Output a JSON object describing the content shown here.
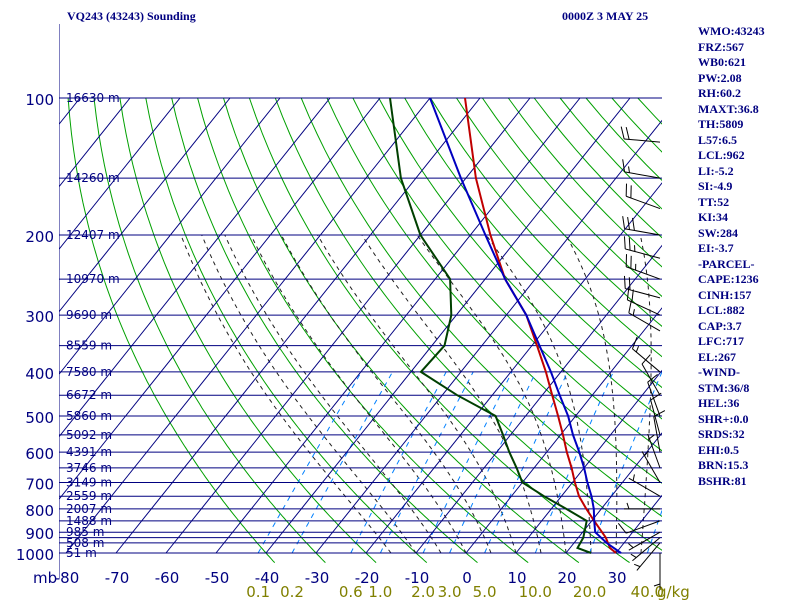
{
  "header": {
    "title": "VQ243 (43243) Sounding",
    "valid_time": "0000Z  3 MAY 25"
  },
  "indices": [
    "WMO:43243",
    "FRZ:567",
    "WB0:621",
    "PW:2.08",
    "RH:60.2",
    "MAXT:36.8",
    "TH:5809",
    "L57:6.5",
    "LCL:962",
    "LI:-5.2",
    "SI:-4.9",
    "TT:52",
    "KI:34",
    "SW:284",
    "EI:-3.7",
    "-PARCEL-",
    "CAPE:1236",
    "CINH:157",
    "LCL:882",
    "CAP:3.7",
    "LFC:717",
    "EL:267",
    "-WIND-",
    "STM:36/8",
    "HEL:36",
    "SHR+:0.0",
    "SRDS:32",
    "EHI:0.5",
    "BRN:15.3",
    "BSHR:81"
  ],
  "chart_data": {
    "type": "skew-t log-p sounding",
    "y_axis": {
      "label": "mb",
      "scale": "log",
      "range_hPa": [
        1000,
        100
      ],
      "ticks": [
        100,
        200,
        300,
        400,
        500,
        600,
        700,
        800,
        900,
        1000
      ]
    },
    "x_axis": {
      "unit": "°C",
      "range_C": [
        -80,
        40
      ],
      "ticks": [
        -80,
        -70,
        -60,
        -50,
        -40,
        -30,
        -20,
        -10,
        0,
        10,
        20,
        30
      ],
      "skewed": true
    },
    "mixing_ratio_axis": {
      "unit": "g/kg",
      "ticks": [
        {
          "text": "0.1",
          "w": 0.1
        },
        {
          "text": "0.2",
          "w": 0.2
        },
        {
          "text": "0.6",
          "w": 0.6
        },
        {
          "text": "1.0",
          "w": 1.0
        },
        {
          "text": "2.0",
          "w": 2.0
        },
        {
          "text": "3.0",
          "w": 3.0
        },
        {
          "text": "5.0",
          "w": 5.0
        },
        {
          "text": "10.0",
          "w": 10.0
        },
        {
          "text": "20.0",
          "w": 20.0
        },
        {
          "text": "40.0",
          "w": 40.0
        }
      ]
    },
    "mixing_ratio_unit_label": "g/kg",
    "height_labels": [
      {
        "p": 100,
        "text": "16630 m"
      },
      {
        "p": 150,
        "text": "14260 m"
      },
      {
        "p": 200,
        "text": "12407 m"
      },
      {
        "p": 250,
        "text": "10970 m"
      },
      {
        "p": 300,
        "text": "9690 m"
      },
      {
        "p": 350,
        "text": "8559 m"
      },
      {
        "p": 400,
        "text": "7580 m"
      },
      {
        "p": 450,
        "text": "6672 m"
      },
      {
        "p": 500,
        "text": "5860 m"
      },
      {
        "p": 550,
        "text": "5092 m"
      },
      {
        "p": 600,
        "text": "4391 m"
      },
      {
        "p": 650,
        "text": "3746 m"
      },
      {
        "p": 700,
        "text": "3149 m"
      },
      {
        "p": 750,
        "text": "2559 m"
      },
      {
        "p": 800,
        "text": "2007 m"
      },
      {
        "p": 850,
        "text": "1488 m"
      },
      {
        "p": 900,
        "text": "985 m"
      },
      {
        "p": 950,
        "text": "508 m"
      },
      {
        "p": 1000,
        "text": "51 m"
      }
    ],
    "isobars_hPa": [
      100,
      150,
      200,
      250,
      300,
      350,
      400,
      450,
      500,
      550,
      600,
      650,
      700,
      750,
      800,
      850,
      900,
      925,
      950,
      1000
    ],
    "series": [
      {
        "kind": "temperature",
        "color": "#c00000",
        "points": [
          {
            "p": 1000,
            "t": 30.0
          },
          {
            "p": 975,
            "t": 28.0
          },
          {
            "p": 925,
            "t": 25.5
          },
          {
            "p": 850,
            "t": 20.5
          },
          {
            "p": 800,
            "t": 17.0
          },
          {
            "p": 750,
            "t": 13.5
          },
          {
            "p": 700,
            "t": 10.5
          },
          {
            "p": 650,
            "t": 7.5
          },
          {
            "p": 600,
            "t": 4.0
          },
          {
            "p": 550,
            "t": 0.5
          },
          {
            "p": 500,
            "t": -3.5
          },
          {
            "p": 450,
            "t": -8.0
          },
          {
            "p": 400,
            "t": -13.0
          },
          {
            "p": 350,
            "t": -19.0
          },
          {
            "p": 300,
            "t": -26.0
          },
          {
            "p": 250,
            "t": -36.0
          },
          {
            "p": 200,
            "t": -46.0
          },
          {
            "p": 150,
            "t": -58.0
          },
          {
            "p": 100,
            "t": -73.0
          }
        ]
      },
      {
        "kind": "dewpoint",
        "color": "#004000",
        "points": [
          {
            "p": 1000,
            "t": 25.0
          },
          {
            "p": 975,
            "t": 21.5
          },
          {
            "p": 925,
            "t": 21.0
          },
          {
            "p": 850,
            "t": 19.0
          },
          {
            "p": 800,
            "t": 13.0
          },
          {
            "p": 750,
            "t": 6.5
          },
          {
            "p": 700,
            "t": 0.0
          },
          {
            "p": 650,
            "t": -3.5
          },
          {
            "p": 600,
            "t": -7.5
          },
          {
            "p": 550,
            "t": -11.5
          },
          {
            "p": 500,
            "t": -16.0
          },
          {
            "p": 450,
            "t": -27.0
          },
          {
            "p": 400,
            "t": -38.0
          },
          {
            "p": 350,
            "t": -37.5
          },
          {
            "p": 300,
            "t": -41.0
          },
          {
            "p": 250,
            "t": -47.0
          },
          {
            "p": 200,
            "t": -60.0
          },
          {
            "p": 150,
            "t": -73.0
          },
          {
            "p": 100,
            "t": -88.0
          }
        ]
      },
      {
        "kind": "parcel",
        "color": "#0000c0",
        "points": [
          {
            "p": 1000,
            "t": 31.0
          },
          {
            "p": 950,
            "t": 26.5
          },
          {
            "p": 900,
            "t": 22.5
          },
          {
            "p": 850,
            "t": 20.5
          },
          {
            "p": 800,
            "t": 18.5
          },
          {
            "p": 750,
            "t": 16.0
          },
          {
            "p": 700,
            "t": 13.0
          },
          {
            "p": 650,
            "t": 10.0
          },
          {
            "p": 600,
            "t": 6.5
          },
          {
            "p": 550,
            "t": 2.5
          },
          {
            "p": 500,
            "t": -1.5
          },
          {
            "p": 450,
            "t": -6.5
          },
          {
            "p": 400,
            "t": -12.0
          },
          {
            "p": 350,
            "t": -18.5
          },
          {
            "p": 300,
            "t": -26.0
          },
          {
            "p": 250,
            "t": -36.0
          },
          {
            "p": 200,
            "t": -47.0
          },
          {
            "p": 150,
            "t": -61.0
          },
          {
            "p": 100,
            "t": -80.0
          }
        ]
      }
    ],
    "wind_barbs": [
      {
        "p": 125,
        "dir": 275,
        "spd": 20
      },
      {
        "p": 150,
        "dir": 280,
        "spd": 15
      },
      {
        "p": 175,
        "dir": 290,
        "spd": 20
      },
      {
        "p": 200,
        "dir": 280,
        "spd": 30
      },
      {
        "p": 225,
        "dir": 285,
        "spd": 25
      },
      {
        "p": 250,
        "dir": 290,
        "spd": 25
      },
      {
        "p": 275,
        "dir": 285,
        "spd": 20
      },
      {
        "p": 300,
        "dir": 295,
        "spd": 20
      },
      {
        "p": 325,
        "dir": 300,
        "spd": 15
      },
      {
        "p": 400,
        "dir": 310,
        "spd": 15
      },
      {
        "p": 450,
        "dir": 330,
        "spd": 10
      },
      {
        "p": 500,
        "dir": 340,
        "spd": 10
      },
      {
        "p": 550,
        "dir": 345,
        "spd": 10
      },
      {
        "p": 600,
        "dir": 350,
        "spd": 10
      },
      {
        "p": 650,
        "dir": 340,
        "spd": 5
      },
      {
        "p": 700,
        "dir": 330,
        "spd": 5
      },
      {
        "p": 750,
        "dir": 300,
        "spd": 5
      },
      {
        "p": 800,
        "dir": 270,
        "spd": 5
      },
      {
        "p": 850,
        "dir": 250,
        "spd": 10
      },
      {
        "p": 900,
        "dir": 240,
        "spd": 5
      },
      {
        "p": 925,
        "dir": 230,
        "spd": 5
      },
      {
        "p": 950,
        "dir": 220,
        "spd": 5
      },
      {
        "p": 1000,
        "dir": 180,
        "spd": 5
      }
    ],
    "grid": true
  },
  "colors": {
    "grid": "#000080",
    "dry_adiabat": "#00a000",
    "moist_adiabat": "#202020",
    "mixing_ratio": "#0080ff",
    "temperature": "#c00000",
    "dewpoint": "#004000",
    "parcel": "#0000c0",
    "axis_label": "#000080",
    "mixing_ratio_label": "#808000",
    "barb": "#000000"
  }
}
